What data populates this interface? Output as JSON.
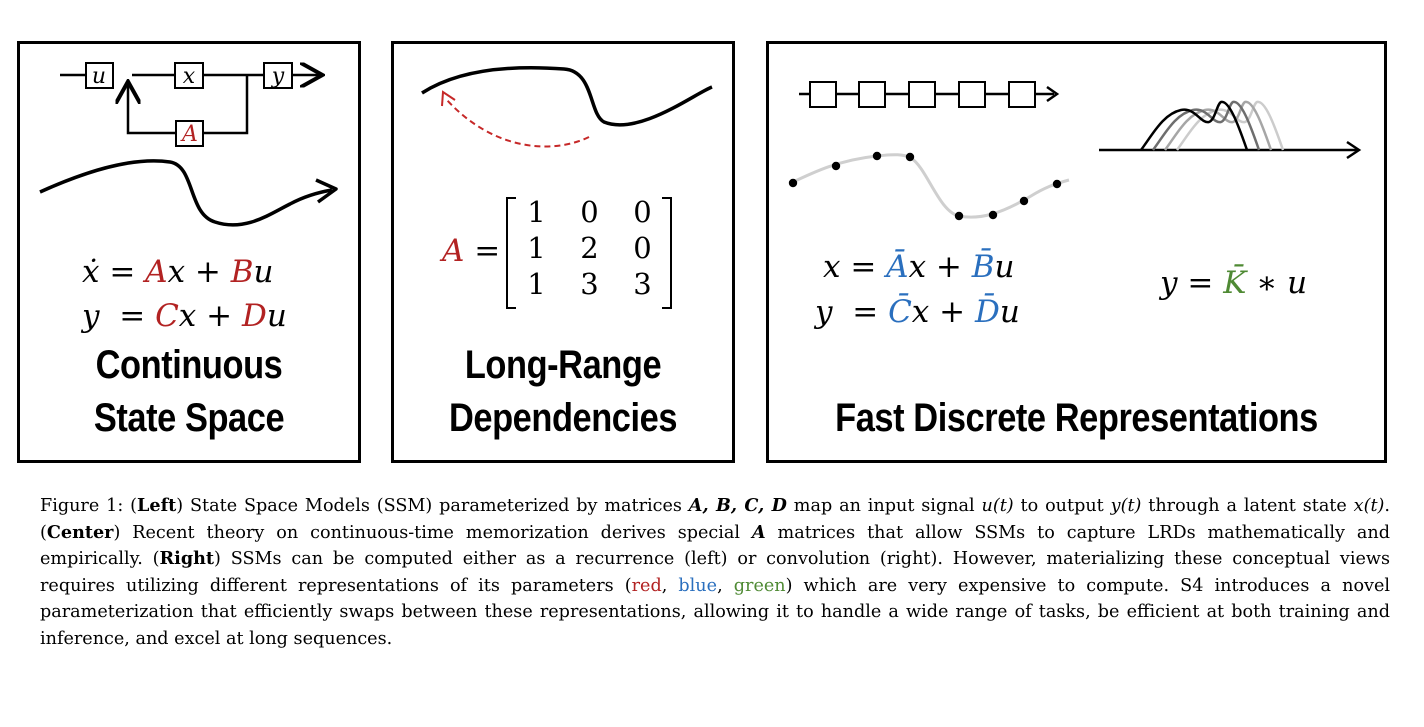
{
  "left": {
    "block_labels": {
      "u": "u",
      "x": "x",
      "a": "A",
      "y": "y"
    },
    "eq1": {
      "lhs": "ẋ",
      "eq": " = ",
      "a": "A",
      "x": "x",
      "plus": " + ",
      "b": "B",
      "u": "u"
    },
    "eq2": {
      "lhs": "y",
      "eq": "  = ",
      "c": "C",
      "x": "x",
      "plus": " + ",
      "d": "D",
      "u": "u"
    },
    "title_line1": "Continuous",
    "title_line2": "State Space"
  },
  "center": {
    "matrix_name": "A",
    "equals": " =",
    "matrix": [
      [
        "1",
        "0",
        "0"
      ],
      [
        "1",
        "2",
        "0"
      ],
      [
        "1",
        "3",
        "3"
      ]
    ],
    "title_line1": "Long-Range",
    "title_line2": "Dependencies"
  },
  "right": {
    "eq1": {
      "lhs": "x",
      "eq": " = ",
      "a": "Ā",
      "x": "x",
      "plus": " + ",
      "b": "B̄",
      "u": "u"
    },
    "eq2": {
      "lhs": "y",
      "eq": "  = ",
      "c": "C̄",
      "x": "x",
      "plus": " + ",
      "d": "D̄",
      "u": "u"
    },
    "eq3": {
      "lhs": "y",
      "eq": " = ",
      "k": "K̄",
      "op": " ∗ ",
      "u": "u"
    },
    "title": "Fast Discrete Representations"
  },
  "caption": {
    "p1": "Figure 1: (",
    "left": "Left",
    "p2": ") State Space Models (SSM) parameterized by matrices ",
    "abcd": "A, B, C, D",
    "p3": " map an input signal ",
    "ut": "u(t)",
    "p4": " to output ",
    "yt": "y(t)",
    "p5": " through a latent state ",
    "xt": "x(t)",
    "p6": ". (",
    "center": "Center",
    "p7": ") Recent theory on continuous-time memorization derives special ",
    "a": "A",
    "p8": " matrices that allow SSMs to capture LRDs mathematically and empirically. (",
    "right": "Right",
    "p9": ") SSMs can be computed either as a recurrence (left) or convolution (right). However, materializing these conceptual views requires utilizing different representations of its parameters (",
    "red": "red",
    "sep1": ", ",
    "blue": "blue",
    "sep2": ", ",
    "green": "green",
    "p10": ") which are very expensive to compute. S4 introduces a novel parameterization that efficiently swaps between these representations, allowing it to handle a wide range of tasks, be efficient at both training and inference, and excel at long sequences."
  },
  "colors": {
    "red": "#b22222",
    "blue": "#2a6fbe",
    "green": "#4f8a34",
    "dashed_arrow": "#c62828"
  }
}
